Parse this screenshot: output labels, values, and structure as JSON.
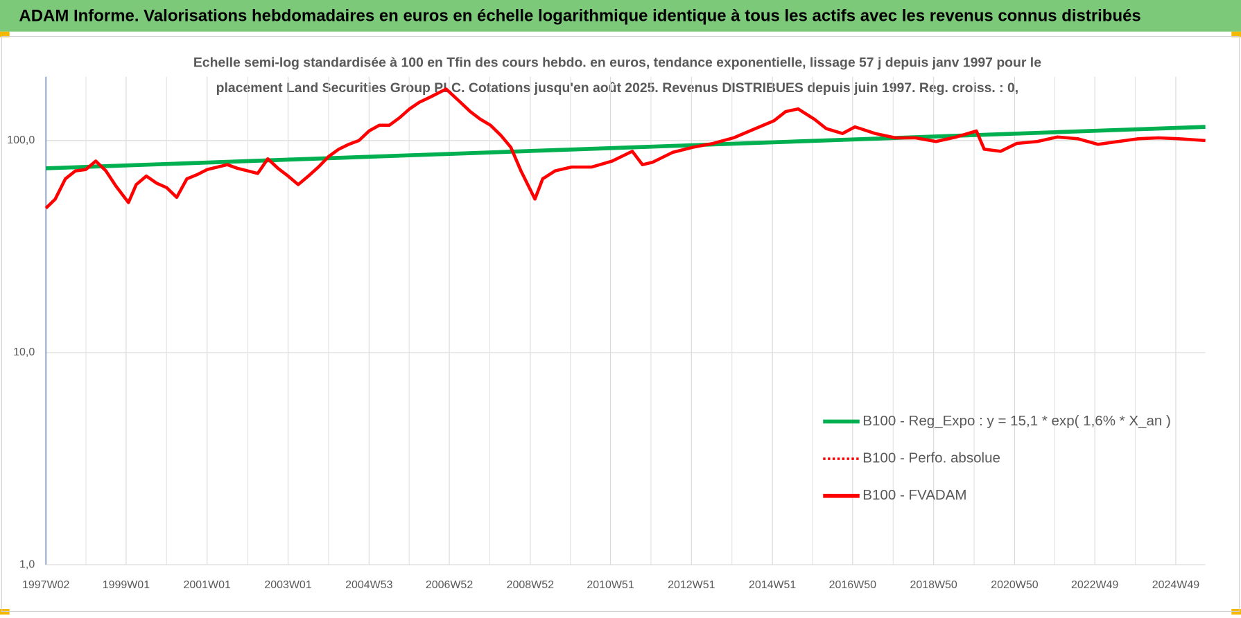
{
  "header": {
    "title": "ADAM Informe. Valorisations hebdomadaires en euros en échelle logarithmique identique à tous les actifs avec les revenus connus distribués"
  },
  "chart_data": {
    "type": "line",
    "subtitle": [
      "Echelle semi-log standardisée à 100 en Tfin des cours hebdo. en euros, tendance exponentielle, lissage 57 j depuis janv 1997 pour le",
      "placement Land Securities Group PLC. Cotations jusqu'en août 2025. Revenus DISTRIBUES depuis juin 1997. Reg. croiss. : 0,"
    ],
    "log_scale": true,
    "grid": true,
    "legend": "bottom-right",
    "xlim": [
      "1997W02",
      "2025W35"
    ],
    "xticks": [
      "1997W02",
      "1999W01",
      "2001W01",
      "2003W01",
      "2004W53",
      "2006W52",
      "2008W52",
      "2010W51",
      "2012W51",
      "2014W51",
      "2016W50",
      "2018W50",
      "2020W50",
      "2022W49",
      "2024W49"
    ],
    "ylim": [
      1,
      200
    ],
    "yticks": [
      {
        "value": 1,
        "label": "1,0"
      },
      {
        "value": 10,
        "label": "10,0"
      },
      {
        "value": 100,
        "label": "100,0"
      }
    ],
    "series": [
      {
        "name": "B100 - Reg_Expo : y = 15,1 * exp( 1,6% *  X_an )",
        "color": "#00b050",
        "x": [
          "1997W02",
          "2025W35"
        ],
        "values": [
          74,
          116
        ]
      },
      {
        "name": "B100 - Perfo. absolue",
        "color": "#ff0000",
        "dash": "dotted"
      },
      {
        "name": "B100 - FVADAM",
        "color": "#ff0000",
        "x": [
          "1997W02",
          "1997W14",
          "1997W27",
          "1997W40",
          "1998W01",
          "1998W14",
          "1998W27",
          "1998W40",
          "1999W04",
          "1999W14",
          "1999W27",
          "1999W40",
          "2000W01",
          "2000W14",
          "2000W27",
          "2000W40",
          "2001W01",
          "2001W27",
          "2001W40",
          "2002W01",
          "2002W14",
          "2002W27",
          "2002W40",
          "2003W01",
          "2003W14",
          "2003W27",
          "2003W40",
          "2004W01",
          "2004W14",
          "2004W27",
          "2004W40",
          "2005W01",
          "2005W14",
          "2005W27",
          "2005W40",
          "2006W01",
          "2006W14",
          "2006W27",
          "2006W48",
          "2007W14",
          "2007W27",
          "2007W40",
          "2008W01",
          "2008W14",
          "2008W27",
          "2008W40",
          "2009W06",
          "2009W16",
          "2009W32",
          "2010W01",
          "2010W27",
          "2011W01",
          "2011W27",
          "2011W40",
          "2012W01",
          "2012W27",
          "2013W01",
          "2013W27",
          "2014W01",
          "2014W27",
          "2015W01",
          "2015W16",
          "2015W32",
          "2016W01",
          "2016W16",
          "2016W37",
          "2017W01",
          "2017W27",
          "2018W01",
          "2018W27",
          "2019W01",
          "2019W27",
          "2020W01",
          "2020W11",
          "2020W32",
          "2021W01",
          "2021W27",
          "2022W01",
          "2022W27",
          "2023W01",
          "2023W27",
          "2024W01",
          "2024W27",
          "2025W01",
          "2025W35"
        ],
        "values": [
          48,
          53,
          66,
          72,
          73,
          80,
          72,
          61,
          51,
          62,
          68,
          63,
          60,
          54,
          66,
          69,
          73,
          77,
          74,
          72,
          70,
          82,
          74,
          68,
          62,
          68,
          75,
          84,
          91,
          96,
          100,
          111,
          118,
          118,
          128,
          141,
          152,
          160,
          175,
          152,
          137,
          126,
          118,
          106,
          93,
          72,
          53,
          66,
          72,
          75,
          75,
          80,
          89,
          77,
          79,
          88,
          93,
          97,
          103,
          113,
          124,
          137,
          141,
          126,
          114,
          108,
          116,
          108,
          103,
          103,
          99,
          104,
          111,
          91,
          89,
          97,
          99,
          104,
          102,
          96,
          99,
          102,
          103,
          102,
          100
        ]
      }
    ]
  }
}
